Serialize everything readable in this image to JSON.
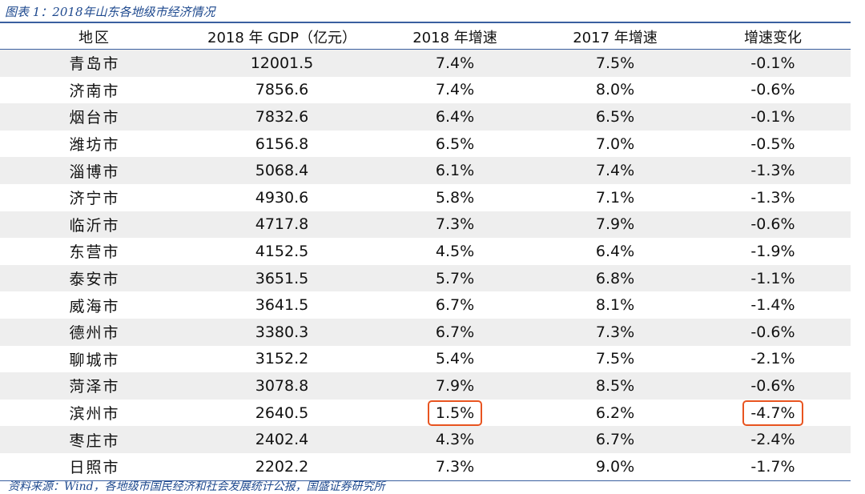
{
  "caption": "图表 1：2018年山东各地级市经济情况",
  "headers": [
    "地区",
    "2018 年 GDP（亿元）",
    "2018 年增速",
    "2017 年增速",
    "增速变化"
  ],
  "rows": [
    {
      "region": "青岛市",
      "gdp": "12001.5",
      "g2018": "7.4%",
      "g2017": "7.5%",
      "change": "-0.1%"
    },
    {
      "region": "济南市",
      "gdp": "7856.6",
      "g2018": "7.4%",
      "g2017": "8.0%",
      "change": "-0.6%"
    },
    {
      "region": "烟台市",
      "gdp": "7832.6",
      "g2018": "6.4%",
      "g2017": "6.5%",
      "change": "-0.1%"
    },
    {
      "region": "潍坊市",
      "gdp": "6156.8",
      "g2018": "6.5%",
      "g2017": "7.0%",
      "change": "-0.5%"
    },
    {
      "region": "淄博市",
      "gdp": "5068.4",
      "g2018": "6.1%",
      "g2017": "7.4%",
      "change": "-1.3%"
    },
    {
      "region": "济宁市",
      "gdp": "4930.6",
      "g2018": "5.8%",
      "g2017": "7.1%",
      "change": "-1.3%"
    },
    {
      "region": "临沂市",
      "gdp": "4717.8",
      "g2018": "7.3%",
      "g2017": "7.9%",
      "change": "-0.6%"
    },
    {
      "region": "东营市",
      "gdp": "4152.5",
      "g2018": "4.5%",
      "g2017": "6.4%",
      "change": "-1.9%"
    },
    {
      "region": "泰安市",
      "gdp": "3651.5",
      "g2018": "5.7%",
      "g2017": "6.8%",
      "change": "-1.1%"
    },
    {
      "region": "威海市",
      "gdp": "3641.5",
      "g2018": "6.7%",
      "g2017": "8.1%",
      "change": "-1.4%"
    },
    {
      "region": "德州市",
      "gdp": "3380.3",
      "g2018": "6.7%",
      "g2017": "7.3%",
      "change": "-0.6%"
    },
    {
      "region": "聊城市",
      "gdp": "3152.2",
      "g2018": "5.4%",
      "g2017": "7.5%",
      "change": "-2.1%"
    },
    {
      "region": "菏泽市",
      "gdp": "3078.8",
      "g2018": "7.9%",
      "g2017": "8.5%",
      "change": "-0.6%"
    },
    {
      "region": "滨州市",
      "gdp": "2640.5",
      "g2018": "1.5%",
      "g2017": "6.2%",
      "change": "-4.7%"
    },
    {
      "region": "枣庄市",
      "gdp": "2402.4",
      "g2018": "4.3%",
      "g2017": "6.7%",
      "change": "-2.4%"
    },
    {
      "region": "日照市",
      "gdp": "2202.2",
      "g2018": "7.3%",
      "g2017": "9.0%",
      "change": "-1.7%"
    }
  ],
  "source": "资料来源：Wind，各地级市国民经济和社会发展统计公报，国盛证券研究所",
  "colors": {
    "accent": "#1f4a8f",
    "rule": "#3a5f9f",
    "shade": "#eeeeee",
    "highlight": "#e85420"
  }
}
